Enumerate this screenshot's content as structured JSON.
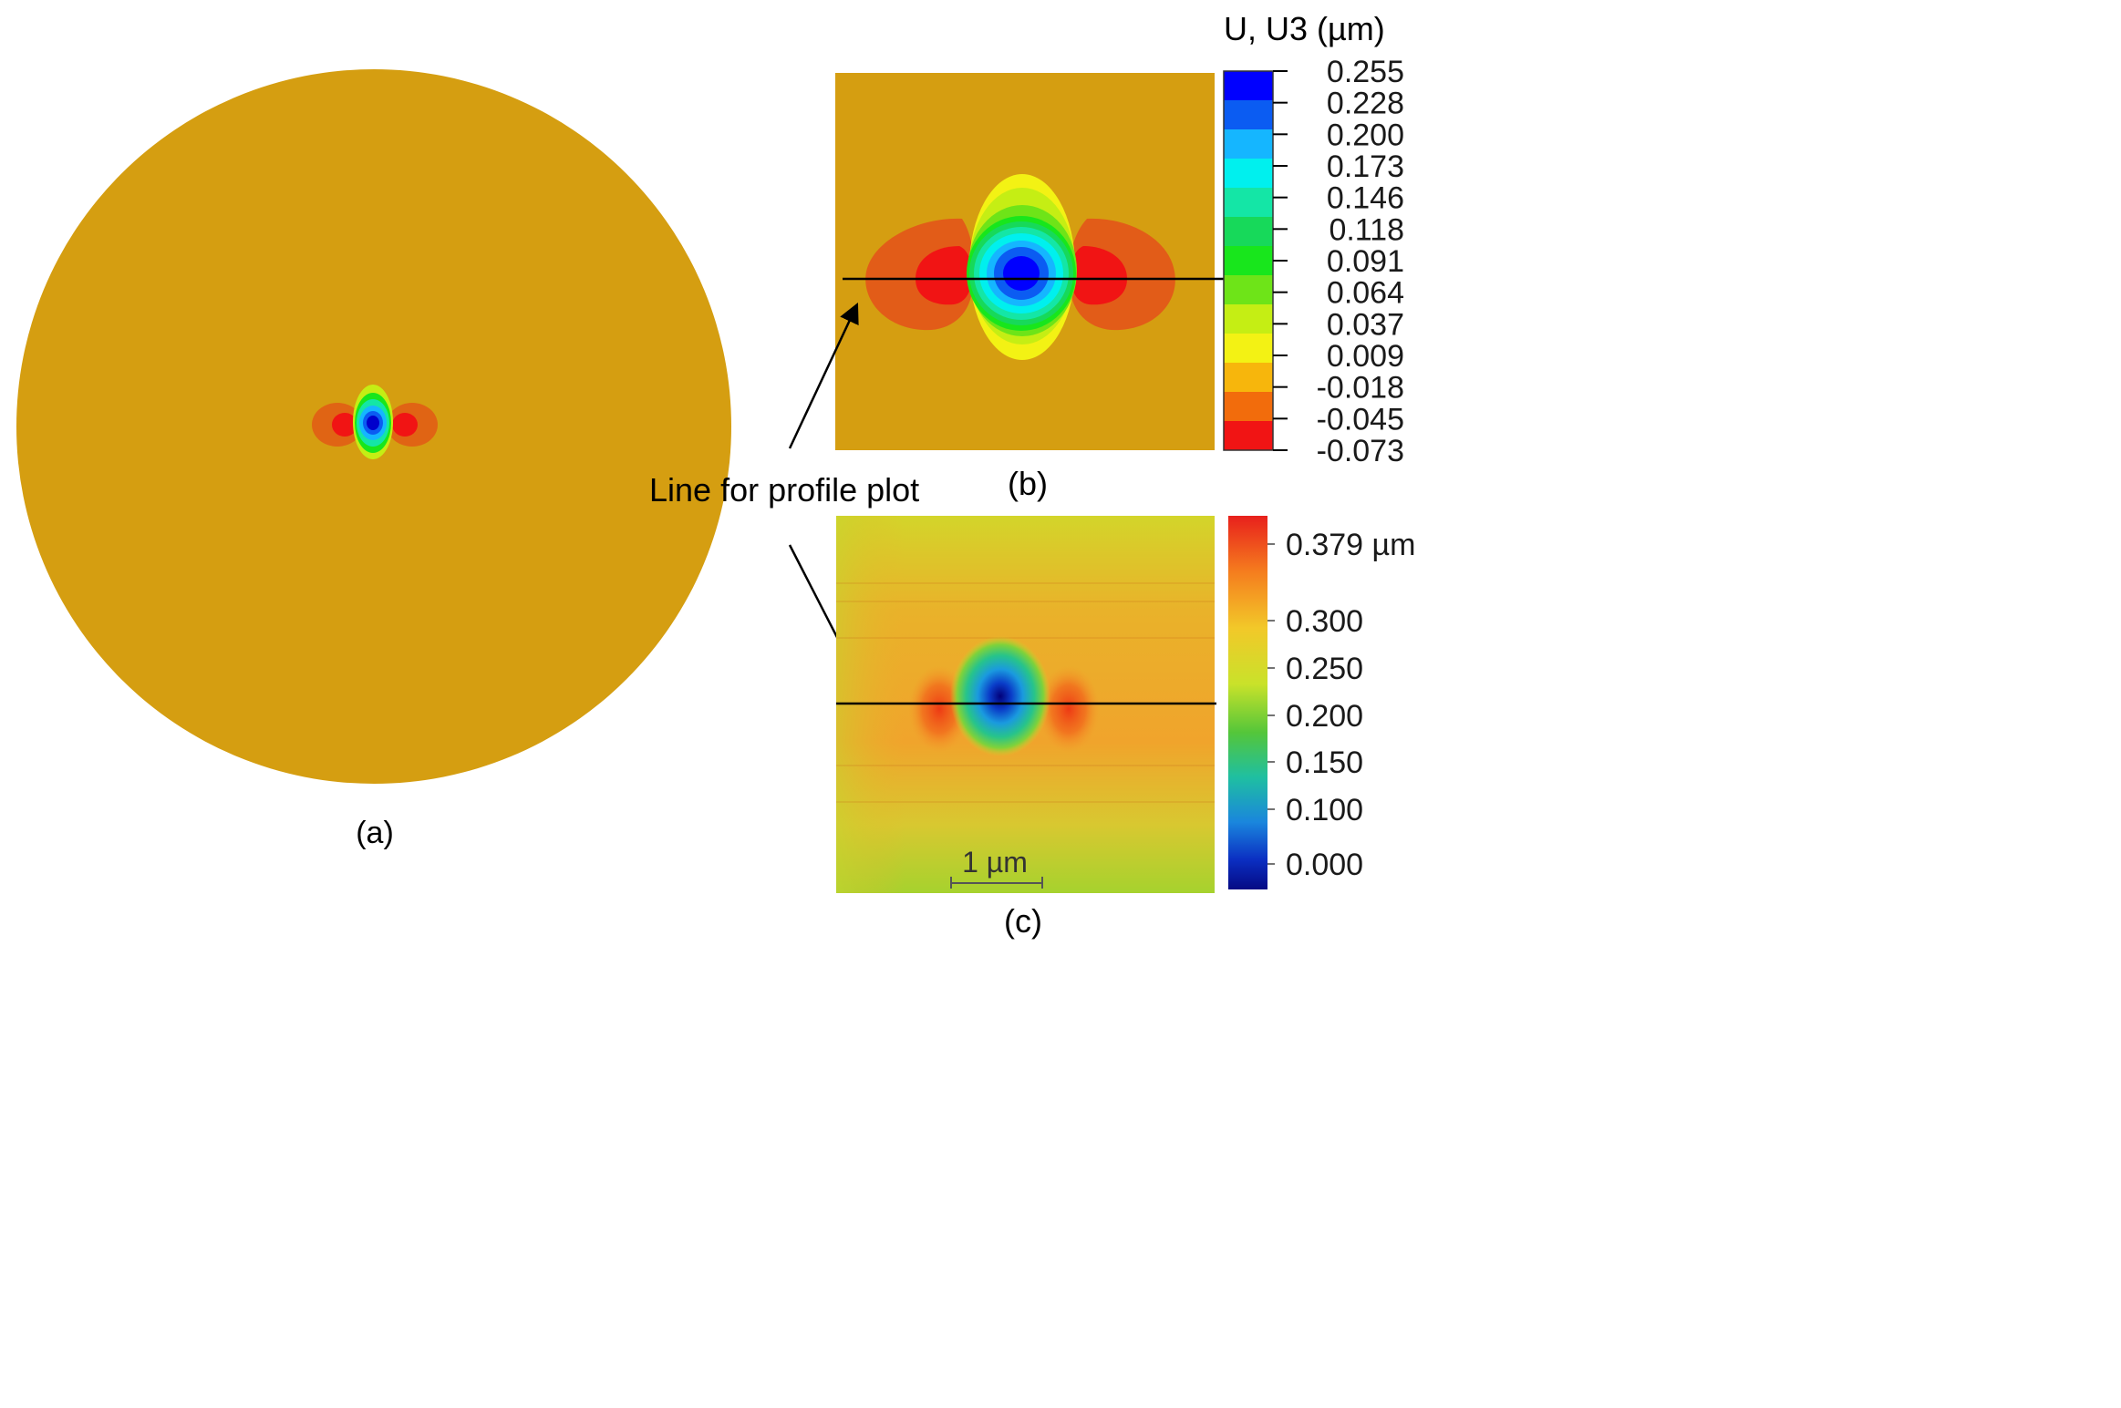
{
  "panels": {
    "a": {
      "caption": "(a)"
    },
    "b": {
      "caption": "(b)",
      "legend_title": "U, U3 (µm)",
      "legend_values": [
        "0.255",
        "0.228",
        "0.200",
        "0.173",
        "0.146",
        "0.118",
        "0.091",
        "0.064",
        "0.037",
        "0.009",
        "-0.018",
        "-0.045",
        "-0.073"
      ],
      "band_colors": [
        "#0000ff",
        "#0b5cf2",
        "#15b6ff",
        "#00f0ee",
        "#14e6a6",
        "#17d95a",
        "#18e61c",
        "#6ee418",
        "#c5ee14",
        "#f3f214",
        "#f7b60c",
        "#f26c0c",
        "#f11414"
      ]
    },
    "c": {
      "caption": "(c)",
      "colorbar_labels": [
        "0.379 µm",
        "0.300",
        "0.250",
        "0.200",
        "0.150",
        "0.100",
        "0.000"
      ],
      "scale_bar": "1 µm"
    }
  },
  "annotation": {
    "text": "Line for profile plot"
  },
  "colors": {
    "background_field": "#d59e11",
    "profile_line": "#000000"
  }
}
